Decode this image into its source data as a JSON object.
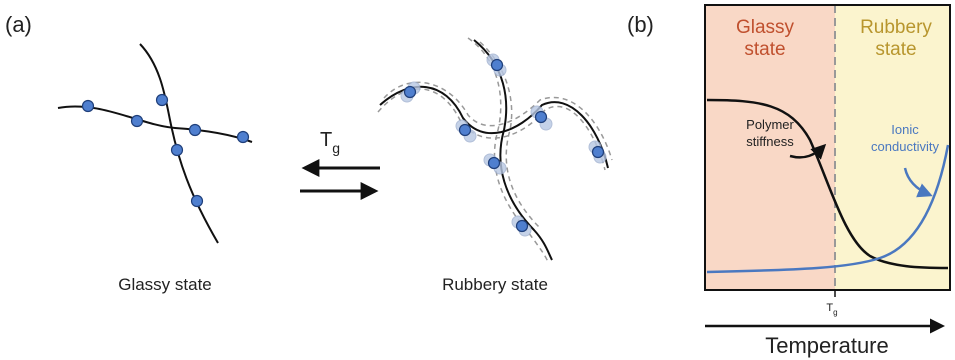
{
  "panel_a": {
    "label": "(a)",
    "glassy_label": "Glassy state",
    "rubbery_label": "Rubbery state",
    "transition": {
      "symbol": "T",
      "subscript": "g"
    }
  },
  "panel_b": {
    "label": "(b)",
    "glassy_header": [
      "Glassy",
      "state"
    ],
    "rubbery_header": [
      "Rubbery",
      "state"
    ],
    "stiffness_label": [
      "Polymer",
      "stiffness"
    ],
    "conductivity_label": [
      "Ionic",
      "conductivity"
    ],
    "tg_label": {
      "symbol": "T",
      "subscript": "g"
    },
    "x_axis_label": "Temperature"
  }
}
